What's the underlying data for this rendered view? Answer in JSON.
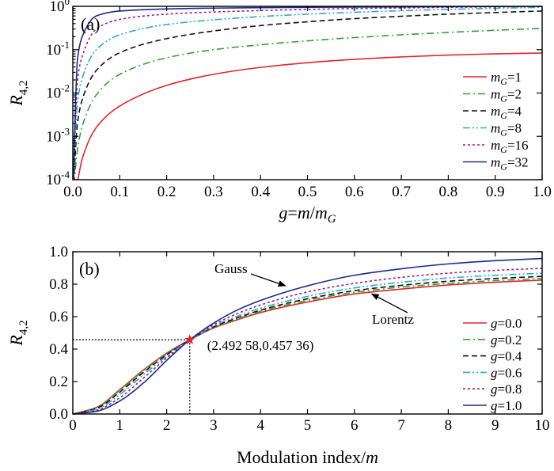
{
  "chart_data": [
    {
      "type": "line",
      "panel_label": "(a)",
      "ylabel_main": "R",
      "ylabel_sub": "4,2",
      "xlabel_parts": [
        {
          "t": "g",
          "i": true
        },
        {
          "t": "=",
          "i": false
        },
        {
          "t": "m",
          "i": true
        },
        {
          "t": "/",
          "i": false
        },
        {
          "t": "m",
          "i": true
        },
        {
          "t": "G",
          "i": true,
          "sub": true
        }
      ],
      "xlim": [
        0,
        1
      ],
      "ylim": [
        0.0001,
        1
      ],
      "yscale": "log",
      "xticks": [
        "0.0",
        "0.1",
        "0.2",
        "0.3",
        "0.4",
        "0.5",
        "0.6",
        "0.7",
        "0.8",
        "0.9",
        "1.0"
      ],
      "yticks": [
        {
          "base": "10",
          "exp": "-4"
        },
        {
          "base": "10",
          "exp": "-3"
        },
        {
          "base": "10",
          "exp": "-2"
        },
        {
          "base": "10",
          "exp": "-1"
        },
        {
          "base": "10",
          "exp": "0"
        }
      ],
      "legend_position": "bottom-right",
      "x": [
        0.01,
        0.02,
        0.05,
        0.1,
        0.2,
        0.3,
        0.4,
        0.5,
        0.6,
        0.7,
        0.8,
        0.9,
        1.0
      ],
      "series": [
        {
          "name": "1",
          "label_var": "m",
          "label_sub": "G",
          "color": "#e0262a",
          "dash": "solid",
          "values": [
            9e-05,
            0.0003,
            0.0016,
            0.005,
            0.015,
            0.027,
            0.039,
            0.05,
            0.06,
            0.068,
            0.075,
            0.08,
            0.084
          ]
        },
        {
          "name": "2",
          "label_var": "m",
          "label_sub": "G",
          "color": "#2ea32e",
          "dash": "dashdot",
          "values": [
            0.0005,
            0.0017,
            0.009,
            0.027,
            0.065,
            0.1,
            0.13,
            0.16,
            0.19,
            0.22,
            0.25,
            0.28,
            0.31
          ]
        },
        {
          "name": "4",
          "label_var": "m",
          "label_sub": "G",
          "color": "#111111",
          "dash": "dash",
          "values": [
            0.002,
            0.007,
            0.033,
            0.085,
            0.18,
            0.27,
            0.36,
            0.44,
            0.52,
            0.59,
            0.66,
            0.72,
            0.78
          ]
        },
        {
          "name": "8",
          "label_var": "m",
          "label_sub": "G",
          "color": "#2aaad6",
          "dash": "dashdotdot",
          "values": [
            0.006,
            0.022,
            0.1,
            0.22,
            0.38,
            0.49,
            0.58,
            0.66,
            0.73,
            0.79,
            0.85,
            0.9,
            0.95
          ]
        },
        {
          "name": "16",
          "label_var": "m",
          "label_sub": "G",
          "color": "#a01880",
          "dash": "dot",
          "values": [
            0.02,
            0.07,
            0.3,
            0.5,
            0.66,
            0.74,
            0.8,
            0.85,
            0.89,
            0.92,
            0.95,
            0.97,
            0.99
          ]
        },
        {
          "name": "32",
          "label_var": "m",
          "label_sub": "G",
          "color": "#1c2a8a",
          "dash": "solid",
          "values": [
            0.06,
            0.2,
            0.6,
            0.78,
            0.87,
            0.91,
            0.93,
            0.95,
            0.96,
            0.97,
            0.98,
            0.99,
            1.0
          ]
        }
      ]
    },
    {
      "type": "line",
      "panel_label": "(b)",
      "ylabel_main": "R",
      "ylabel_sub": "4,2",
      "xlabel": "Modulation index/",
      "xlabel_var": "m",
      "xlim": [
        0,
        10
      ],
      "ylim": [
        0,
        1
      ],
      "xticks": [
        "0",
        "1",
        "2",
        "3",
        "4",
        "5",
        "6",
        "7",
        "8",
        "9",
        "10"
      ],
      "yticks": [
        "0.0",
        "0.2",
        "0.4",
        "0.6",
        "0.8",
        "1.0"
      ],
      "legend_position": "right",
      "x": [
        0,
        0.5,
        1,
        1.5,
        2,
        2.49258,
        3,
        3.5,
        4,
        5,
        6,
        7,
        8,
        9,
        10
      ],
      "series": [
        {
          "name": "0.0",
          "label_var": "g",
          "color": "#e0262a",
          "dash": "solid",
          "values": [
            0,
            0.04,
            0.15,
            0.27,
            0.375,
            0.45736,
            0.53,
            0.58,
            0.625,
            0.69,
            0.74,
            0.77,
            0.795,
            0.812,
            0.825
          ]
        },
        {
          "name": "0.2",
          "label_var": "g",
          "color": "#2ea32e",
          "dash": "dashdot",
          "values": [
            0,
            0.038,
            0.145,
            0.265,
            0.37,
            0.45736,
            0.533,
            0.585,
            0.632,
            0.7,
            0.75,
            0.782,
            0.805,
            0.822,
            0.835
          ]
        },
        {
          "name": "0.4",
          "label_var": "g",
          "color": "#111111",
          "dash": "dash",
          "values": [
            0,
            0.033,
            0.135,
            0.255,
            0.365,
            0.45736,
            0.537,
            0.592,
            0.64,
            0.71,
            0.76,
            0.793,
            0.818,
            0.835,
            0.848
          ]
        },
        {
          "name": "0.6",
          "label_var": "g",
          "color": "#2aaad6",
          "dash": "dashdotdot",
          "values": [
            0,
            0.028,
            0.12,
            0.24,
            0.355,
            0.45736,
            0.542,
            0.602,
            0.652,
            0.725,
            0.777,
            0.812,
            0.838,
            0.855,
            0.868
          ]
        },
        {
          "name": "0.8",
          "label_var": "g",
          "color": "#a01880",
          "dash": "dot",
          "values": [
            0,
            0.022,
            0.1,
            0.22,
            0.345,
            0.45736,
            0.55,
            0.618,
            0.672,
            0.752,
            0.805,
            0.842,
            0.868,
            0.885,
            0.898
          ]
        },
        {
          "name": "1.0",
          "label_var": "g",
          "color": "#1c2a8a",
          "dash": "solid",
          "values": [
            0,
            0.016,
            0.08,
            0.19,
            0.33,
            0.45736,
            0.56,
            0.64,
            0.7,
            0.79,
            0.855,
            0.895,
            0.925,
            0.945,
            0.958
          ]
        }
      ],
      "crossing_point": {
        "x": 2.49258,
        "y": 0.45736,
        "label": "(2.492 58,0.457 36)",
        "color": "#e0262a"
      },
      "annotations": [
        {
          "text": "Gauss",
          "points_to": {
            "x": 4.6,
            "y": 0.78
          }
        },
        {
          "text": "Lorentz",
          "points_to": {
            "x": 6.3,
            "y": 0.75
          }
        }
      ]
    }
  ]
}
